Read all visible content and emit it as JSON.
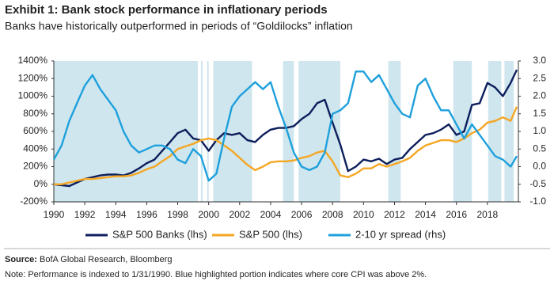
{
  "chart_data": {
    "type": "line",
    "title": "Exhibit 1: Bank stock performance in inflationary periods",
    "subtitle": "Banks have historically outperformed in periods of “Goldilocks” inflation",
    "x": [
      1990,
      1990.5,
      1991,
      1991.5,
      1992,
      1992.5,
      1993,
      1993.5,
      1994,
      1994.5,
      1995,
      1995.5,
      1996,
      1996.5,
      1997,
      1997.5,
      1998,
      1998.5,
      1999,
      1999.5,
      2000,
      2000.5,
      2001,
      2001.5,
      2002,
      2002.5,
      2003,
      2003.5,
      2004,
      2004.5,
      2005,
      2005.5,
      2006,
      2006.5,
      2007,
      2007.5,
      2008,
      2008.5,
      2009,
      2009.5,
      2010,
      2010.5,
      2011,
      2011.5,
      2012,
      2012.5,
      2013,
      2013.5,
      2014,
      2014.5,
      2015,
      2015.5,
      2016,
      2016.5,
      2017,
      2017.5,
      2018,
      2018.5,
      2019,
      2019.5,
      2019.9
    ],
    "series": [
      {
        "name": "S&P 500 Banks (lhs)",
        "color": "#0d1f5c",
        "values": [
          0,
          -10,
          -20,
          20,
          60,
          80,
          100,
          110,
          110,
          100,
          130,
          180,
          240,
          280,
          380,
          480,
          580,
          620,
          520,
          500,
          380,
          500,
          580,
          560,
          580,
          500,
          480,
          560,
          620,
          640,
          640,
          660,
          740,
          800,
          920,
          960,
          700,
          450,
          150,
          200,
          280,
          260,
          290,
          230,
          280,
          300,
          400,
          480,
          560,
          580,
          620,
          680,
          560,
          600,
          900,
          920,
          1150,
          1100,
          1000,
          1150,
          1300
        ]
      },
      {
        "name": "S&P 500 (lhs)",
        "color": "#f5a623",
        "values": [
          0,
          0,
          20,
          40,
          60,
          60,
          70,
          80,
          90,
          90,
          100,
          130,
          170,
          200,
          260,
          320,
          400,
          430,
          460,
          500,
          520,
          500,
          440,
          380,
          300,
          220,
          160,
          200,
          250,
          260,
          260,
          270,
          300,
          320,
          360,
          380,
          260,
          100,
          80,
          120,
          180,
          180,
          230,
          200,
          230,
          260,
          300,
          380,
          440,
          470,
          500,
          500,
          480,
          520,
          580,
          620,
          700,
          720,
          760,
          720,
          880
        ]
      },
      {
        "name": "2-10 yr spread (rhs)",
        "color": "#1ea0dc",
        "axis": "y2",
        "values": [
          0.2,
          0.6,
          1.3,
          1.8,
          2.3,
          2.6,
          2.2,
          1.9,
          1.6,
          1.0,
          0.6,
          0.4,
          0.5,
          0.6,
          0.6,
          0.5,
          0.2,
          0.1,
          0.5,
          0.3,
          -0.4,
          -0.2,
          0.8,
          1.7,
          2.0,
          2.2,
          2.4,
          2.2,
          2.4,
          1.7,
          1.1,
          0.4,
          0.0,
          -0.1,
          0.0,
          0.4,
          1.5,
          1.6,
          1.8,
          2.7,
          2.7,
          2.4,
          2.6,
          2.2,
          1.8,
          1.5,
          1.4,
          2.3,
          2.5,
          2.0,
          1.6,
          1.6,
          1.2,
          0.8,
          1.2,
          0.9,
          0.6,
          0.3,
          0.2,
          0.0,
          0.3
        ]
      }
    ],
    "shaded_periods": [
      [
        1990,
        1999.3
      ],
      [
        1999.5,
        1999.6
      ],
      [
        1999.9,
        2000.0
      ],
      [
        2000.3,
        2002.8
      ],
      [
        2004.8,
        2005.5
      ],
      [
        2005.8,
        2008.5
      ],
      [
        2011.6,
        2012.4
      ],
      [
        2015.8,
        2017.0
      ],
      [
        2018.05,
        2018.9
      ],
      [
        2019.1,
        2019.7
      ]
    ],
    "shade_color": "#cfe6ee",
    "xlim": [
      1990,
      2020
    ],
    "xticks": [
      1990,
      1992,
      1994,
      1996,
      1998,
      2000,
      2002,
      2004,
      2006,
      2008,
      2010,
      2012,
      2014,
      2016,
      2018
    ],
    "ylim": [
      -200,
      1400
    ],
    "yticks": [
      {
        "value": -200,
        "label": "-200%"
      },
      {
        "value": 0,
        "label": "0%"
      },
      {
        "value": 200,
        "label": "200%"
      },
      {
        "value": 400,
        "label": "400%"
      },
      {
        "value": 600,
        "label": "600%"
      },
      {
        "value": 800,
        "label": "800%"
      },
      {
        "value": 1000,
        "label": "1000%"
      },
      {
        "value": 1200,
        "label": "1200%"
      },
      {
        "value": 1400,
        "label": "1400%"
      }
    ],
    "y2lim": [
      -1,
      3
    ],
    "y2ticks": [
      {
        "value": -1,
        "label": "-1.0"
      },
      {
        "value": -0.5,
        "label": "-0.5"
      },
      {
        "value": 0,
        "label": "0.0"
      },
      {
        "value": 0.5,
        "label": "0.5"
      },
      {
        "value": 1,
        "label": "1.0"
      },
      {
        "value": 1.5,
        "label": "1.5"
      },
      {
        "value": 2,
        "label": "2.0"
      },
      {
        "value": 2.5,
        "label": "2.5"
      },
      {
        "value": 3,
        "label": "3.0"
      }
    ],
    "source_label": "Source:",
    "source": "BofA Global Research, Bloomberg",
    "note": "Note: Performance is indexed to 1/31/1990.  Blue highlighted  portion indicates  where core CPI was above 2%."
  }
}
